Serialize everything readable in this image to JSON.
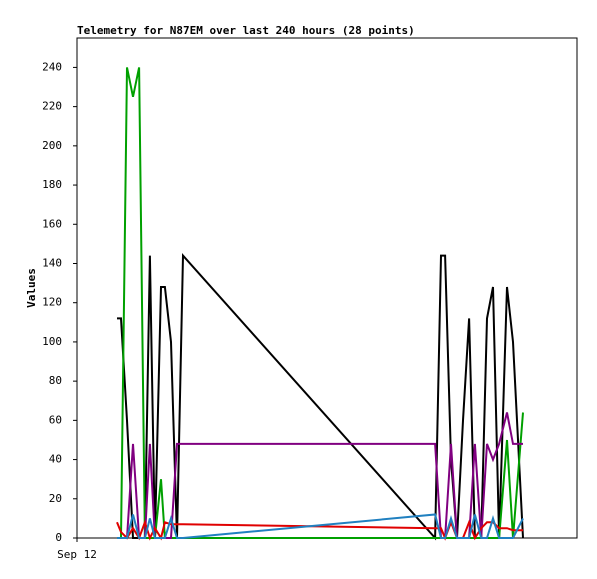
{
  "chart_data": {
    "type": "line",
    "title": "Telemetry for N87EM over last 240 hours (28 points)",
    "ylabel": "Values",
    "x": [
      19.2,
      21.1,
      24.0,
      26.9,
      29.8,
      32.6,
      35.0,
      37.4,
      40.3,
      42.2,
      45.1,
      48.0,
      50.9,
      171.9,
      174.7,
      176.7,
      179.5,
      182.4,
      185.3,
      188.2,
      191.0,
      194.0,
      196.8,
      199.7,
      202.6,
      206.4,
      209.3,
      214.1
    ],
    "xlim": [
      0,
      240
    ],
    "xticks": [
      {
        "value": 0,
        "label": "Sep 12"
      }
    ],
    "ylim": [
      0,
      255
    ],
    "yticks": [
      0,
      20,
      40,
      60,
      80,
      100,
      120,
      140,
      160,
      180,
      200,
      220,
      240
    ],
    "series": [
      {
        "color": "#000000",
        "values": [
          112,
          112,
          60,
          0,
          0,
          0,
          144,
          0,
          128,
          128,
          100,
          0,
          144,
          0,
          144,
          144,
          40,
          0,
          60,
          112,
          0,
          0,
          112,
          128,
          0,
          128,
          100,
          0
        ]
      },
      {
        "color": "#00a000",
        "values": [
          0,
          0,
          240,
          225,
          240,
          0,
          0,
          0,
          30,
          0,
          0,
          0,
          0,
          0,
          0,
          0,
          0,
          0,
          0,
          0,
          0,
          0,
          0,
          0,
          0,
          50,
          0,
          64
        ]
      },
      {
        "color": "#800080",
        "values": [
          0,
          0,
          0,
          48,
          0,
          0,
          48,
          0,
          0,
          0,
          0,
          48,
          48,
          48,
          0,
          0,
          48,
          0,
          0,
          0,
          48,
          0,
          48,
          40,
          48,
          64,
          48,
          48
        ]
      },
      {
        "color": "#e00000",
        "values": [
          8,
          3,
          0,
          5,
          0,
          8,
          0,
          5,
          0,
          8,
          7,
          7,
          7,
          5,
          5,
          0,
          8,
          0,
          0,
          8,
          0,
          5,
          8,
          8,
          5,
          5,
          4,
          4
        ]
      },
      {
        "color": "#2080c0",
        "values": [
          0,
          0,
          0,
          12,
          0,
          0,
          10,
          0,
          0,
          0,
          10,
          0,
          0,
          12,
          0,
          0,
          10,
          0,
          0,
          0,
          12,
          0,
          0,
          10,
          0,
          0,
          0,
          10
        ]
      }
    ]
  }
}
